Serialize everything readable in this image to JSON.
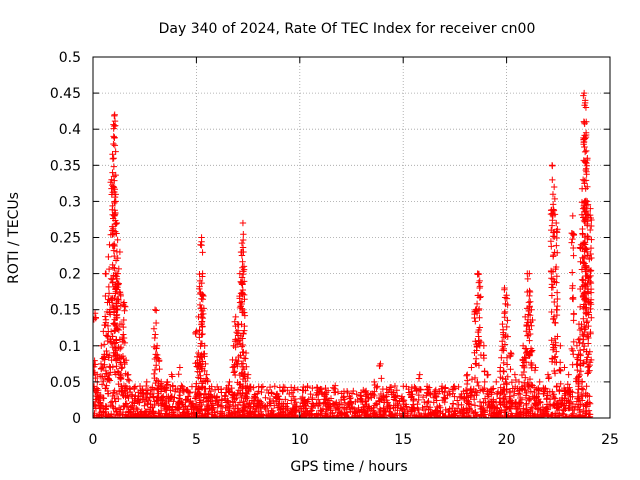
{
  "chart_data": {
    "type": "scatter",
    "title": "Day 340 of 2024, Rate Of TEC Index for receiver cn00",
    "xlabel": "GPS time / hours",
    "ylabel": "ROTI / TECUs",
    "xlim": [
      0,
      25
    ],
    "ylim": [
      0,
      0.5
    ],
    "grid": true,
    "x_ticks": [
      0,
      5,
      10,
      15,
      20,
      25
    ],
    "x_tick_labels": [
      "0",
      "5",
      "10",
      "15",
      "20",
      "25"
    ],
    "y_ticks": [
      0,
      0.05,
      0.1,
      0.15,
      0.2,
      0.25,
      0.3,
      0.35,
      0.4,
      0.45,
      0.5
    ],
    "y_tick_labels": [
      "0",
      "0.05",
      "0.1",
      "0.15",
      "0.2",
      "0.25",
      "0.3",
      "0.35",
      "0.4",
      "0.45",
      "0.5"
    ],
    "marker": "plus",
    "series": [
      {
        "name": "ROTI",
        "color": "#ff0000",
        "x": [
          0.1,
          0.2,
          0.3,
          0.4,
          0.5,
          0.6,
          0.7,
          0.8,
          0.9,
          1.0,
          1.05,
          1.1,
          1.15,
          1.2,
          1.3,
          1.4,
          1.5,
          1.6,
          1.7,
          1.8,
          1.9,
          2.0,
          2.2,
          2.4,
          2.6,
          2.8,
          3.0,
          3.1,
          3.2,
          3.3,
          3.4,
          3.6,
          3.8,
          4.0,
          4.2,
          4.4,
          4.6,
          4.8,
          5.0,
          5.1,
          5.2,
          5.25,
          5.3,
          5.4,
          5.5,
          5.6,
          5.8,
          6.0,
          6.2,
          6.4,
          6.6,
          6.8,
          6.9,
          7.0,
          7.1,
          7.2,
          7.25,
          7.3,
          7.4,
          7.5,
          7.6,
          7.8,
          8.0,
          8.3,
          8.6,
          9.0,
          9.4,
          9.8,
          10.2,
          10.6,
          11.0,
          11.2,
          11.6,
          12.0,
          12.4,
          12.8,
          13.2,
          13.6,
          13.9,
          14.2,
          14.6,
          15.0,
          15.4,
          15.8,
          16.2,
          16.6,
          17.0,
          17.4,
          17.8,
          18.1,
          18.3,
          18.5,
          18.6,
          18.7,
          18.9,
          19.1,
          19.3,
          19.5,
          19.7,
          19.8,
          19.9,
          20.0,
          20.2,
          20.4,
          20.6,
          20.8,
          20.9,
          21.0,
          21.1,
          21.2,
          21.4,
          21.6,
          21.8,
          22.0,
          22.2,
          22.3,
          22.4,
          22.6,
          22.8,
          23.0,
          23.2,
          23.4,
          23.5,
          23.6,
          23.7,
          23.75,
          23.8,
          23.85,
          23.9,
          24.0,
          24.05
        ],
        "y": [
          0.145,
          0.06,
          0.03,
          0.1,
          0.12,
          0.2,
          0.16,
          0.24,
          0.33,
          0.39,
          0.42,
          0.3,
          0.27,
          0.2,
          0.23,
          0.13,
          0.16,
          0.08,
          0.06,
          0.04,
          0.03,
          0.02,
          0.03,
          0.04,
          0.05,
          0.04,
          0.15,
          0.1,
          0.08,
          0.05,
          0.03,
          0.05,
          0.06,
          0.04,
          0.07,
          0.04,
          0.03,
          0.02,
          0.12,
          0.14,
          0.24,
          0.25,
          0.2,
          0.1,
          0.06,
          0.03,
          0.02,
          0.03,
          0.04,
          0.03,
          0.05,
          0.1,
          0.14,
          0.13,
          0.2,
          0.23,
          0.27,
          0.21,
          0.09,
          0.06,
          0.04,
          0.03,
          0.02,
          0.015,
          0.02,
          0.015,
          0.02,
          0.015,
          0.02,
          0.02,
          0.04,
          0.03,
          0.02,
          0.025,
          0.03,
          0.025,
          0.035,
          0.05,
          0.075,
          0.04,
          0.03,
          0.025,
          0.03,
          0.06,
          0.04,
          0.03,
          0.035,
          0.04,
          0.03,
          0.06,
          0.07,
          0.15,
          0.2,
          0.19,
          0.1,
          0.06,
          0.04,
          0.05,
          0.07,
          0.13,
          0.18,
          0.17,
          0.09,
          0.06,
          0.05,
          0.1,
          0.14,
          0.2,
          0.2,
          0.15,
          0.07,
          0.05,
          0.04,
          0.06,
          0.35,
          0.32,
          0.27,
          0.1,
          0.07,
          0.06,
          0.28,
          0.1,
          0.13,
          0.24,
          0.33,
          0.45,
          0.44,
          0.37,
          0.3,
          0.22,
          0.29
        ],
        "baseline_band": [
          0.0,
          0.045
        ]
      }
    ]
  }
}
